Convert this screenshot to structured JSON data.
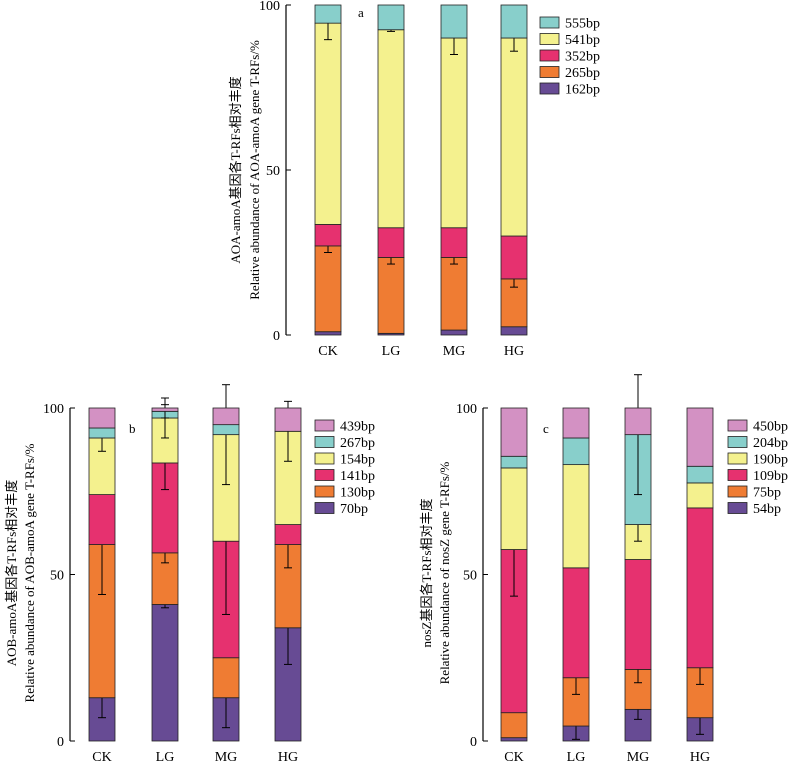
{
  "chart_data": [
    {
      "panel": "a",
      "type": "bar",
      "stacked": true,
      "categories": [
        "CK",
        "LG",
        "MG",
        "HG"
      ],
      "ylabel_cn": "AOA-amoA基因各T-RFs相对丰度",
      "ylabel_en": "Relative abundance of AOA-amoA gene T-RFs/%",
      "ylim": [
        0,
        100
      ],
      "yticks": [
        0,
        50,
        100
      ],
      "legend_position": "right",
      "series": [
        {
          "name": "162bp",
          "color": "#674b94",
          "values": [
            1,
            0.5,
            1.5,
            2.5
          ],
          "errors": [
            0,
            0,
            0,
            0
          ]
        },
        {
          "name": "265bp",
          "color": "#ef7c33",
          "values": [
            26,
            23,
            22,
            14.5
          ],
          "errors": [
            2,
            2,
            2,
            2.5
          ]
        },
        {
          "name": "352bp",
          "color": "#e6316f",
          "values": [
            6.5,
            9,
            9,
            13
          ],
          "errors": [
            0,
            0,
            0,
            0
          ]
        },
        {
          "name": "541bp",
          "color": "#f4f18e",
          "values": [
            61,
            60,
            57.5,
            60
          ],
          "errors": [
            5,
            0.5,
            5,
            4
          ]
        },
        {
          "name": "555bp",
          "color": "#88cfcb",
          "values": [
            5.5,
            7.5,
            10,
            10
          ],
          "errors": [
            0,
            0,
            0,
            0
          ]
        }
      ]
    },
    {
      "panel": "b",
      "type": "bar",
      "stacked": true,
      "categories": [
        "CK",
        "LG",
        "MG",
        "HG"
      ],
      "ylabel_cn": "AOB-amoA基因各T-RFs相对丰度",
      "ylabel_en": "Relative abundance of AOB-amoA gene T-RFs/%",
      "ylim": [
        0,
        100
      ],
      "yticks": [
        0,
        50,
        100
      ],
      "legend_position": "right",
      "series": [
        {
          "name": "70bp",
          "color": "#674b94",
          "values": [
            13,
            41,
            13,
            34
          ],
          "errors": [
            6,
            1,
            9,
            11
          ]
        },
        {
          "name": "130bp",
          "color": "#ef7c33",
          "values": [
            46,
            15.5,
            12,
            25
          ],
          "errors": [
            15,
            3,
            0,
            7
          ]
        },
        {
          "name": "141bp",
          "color": "#e6316f",
          "values": [
            15,
            27,
            35,
            6
          ],
          "errors": [
            0,
            8,
            22,
            0
          ]
        },
        {
          "name": "154bp",
          "color": "#f4f18e",
          "values": [
            17,
            13.5,
            32,
            28
          ],
          "errors": [
            4,
            6,
            15,
            9
          ]
        },
        {
          "name": "267bp",
          "color": "#88cfcb",
          "values": [
            3,
            2,
            3,
            0
          ],
          "errors": [
            0,
            2,
            0,
            0
          ]
        },
        {
          "name": "439bp",
          "color": "#d391c3",
          "values": [
            6,
            1,
            5,
            7
          ],
          "errors": [
            0,
            0,
            0,
            0
          ]
        }
      ]
    },
    {
      "panel": "c",
      "type": "bar",
      "stacked": true,
      "categories": [
        "CK",
        "LG",
        "MG",
        "HG"
      ],
      "ylabel_cn": "nosZ基因各T-RFs相对丰度",
      "ylabel_en": "Relative abundance of nosZ gene T-RFs/%",
      "ylim": [
        0,
        100
      ],
      "yticks": [
        0,
        50,
        100
      ],
      "legend_position": "right",
      "series": [
        {
          "name": "54bp",
          "color": "#674b94",
          "values": [
            1,
            4.5,
            9.5,
            7
          ],
          "errors": [
            0,
            4,
            3,
            5
          ]
        },
        {
          "name": "75bp",
          "color": "#ef7c33",
          "values": [
            7.5,
            14.5,
            12,
            15
          ],
          "errors": [
            0,
            5,
            4,
            5
          ]
        },
        {
          "name": "109bp",
          "color": "#e6316f",
          "values": [
            49,
            33,
            33,
            48
          ],
          "errors": [
            14,
            0,
            0,
            0
          ]
        },
        {
          "name": "190bp",
          "color": "#f4f18e",
          "values": [
            24.5,
            31,
            10.5,
            7.5
          ],
          "errors": [
            0,
            0,
            5,
            0
          ]
        },
        {
          "name": "204bp",
          "color": "#88cfcb",
          "values": [
            3.5,
            8,
            27,
            5
          ],
          "errors": [
            0,
            0,
            18,
            0
          ]
        },
        {
          "name": "450bp",
          "color": "#d391c3",
          "values": [
            14.5,
            9,
            8,
            17.5
          ],
          "errors": [
            0,
            0,
            0,
            0
          ]
        }
      ]
    }
  ],
  "panel_labels": [
    "a",
    "b",
    "c"
  ]
}
